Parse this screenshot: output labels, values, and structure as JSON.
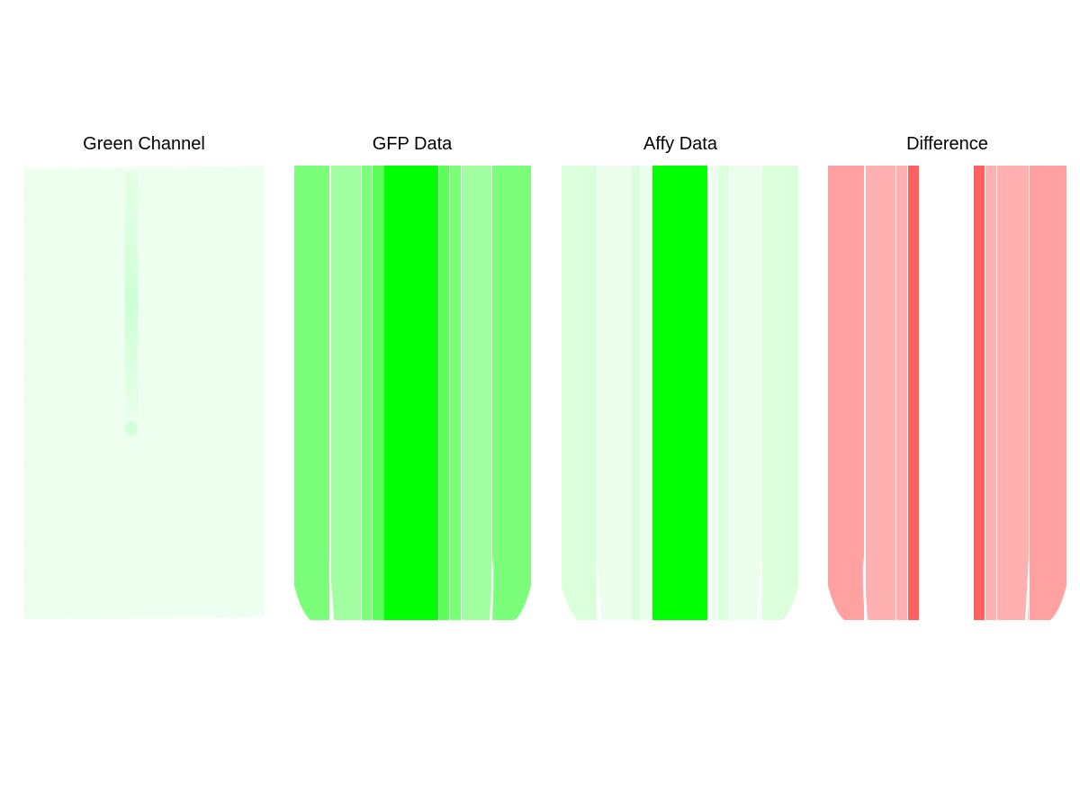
{
  "figure": {
    "panels": [
      {
        "id": "green-channel",
        "title": "Green Channel",
        "kind": "image"
      },
      {
        "id": "gfp-data",
        "title": "GFP Data",
        "kind": "bands",
        "bands": [
          {
            "w": 39,
            "color": "#7bff7b"
          },
          {
            "w": 2,
            "color": "#ffffff"
          },
          {
            "w": 33,
            "color": "#a1ffa1"
          },
          {
            "w": 1,
            "color": "#ffffff"
          },
          {
            "w": 11,
            "color": "#7bff7b"
          },
          {
            "w": 1,
            "color": "#ffffff"
          },
          {
            "w": 13,
            "color": "#5aff5a"
          },
          {
            "w": 60,
            "color": "#00ff00"
          },
          {
            "w": 1,
            "color": "#ffffff"
          },
          {
            "w": 11,
            "color": "#5aff5a"
          },
          {
            "w": 1,
            "color": "#ffffff"
          },
          {
            "w": 12,
            "color": "#7bff7b"
          },
          {
            "w": 1,
            "color": "#ffffff"
          },
          {
            "w": 33,
            "color": "#a1ffa1"
          },
          {
            "w": 1,
            "color": "#ffffff"
          },
          {
            "w": 43,
            "color": "#7bff7b"
          }
        ]
      },
      {
        "id": "affy-data",
        "title": "Affy Data",
        "kind": "bands",
        "bands": [
          {
            "w": 39,
            "color": "#daffda"
          },
          {
            "w": 1,
            "color": "#ffffff"
          },
          {
            "w": 36,
            "color": "#ecffec"
          },
          {
            "w": 1,
            "color": "#ffffff"
          },
          {
            "w": 10,
            "color": "#daffda"
          },
          {
            "w": 1,
            "color": "#ffffff"
          },
          {
            "w": 13,
            "color": "#ecffec"
          },
          {
            "w": 61,
            "color": "#00ff00"
          },
          {
            "w": 1,
            "color": "#ffffff"
          },
          {
            "w": 10,
            "color": "#ecffec"
          },
          {
            "w": 1,
            "color": "#ffffff"
          },
          {
            "w": 12,
            "color": "#daffda"
          },
          {
            "w": 1,
            "color": "#ffffff"
          },
          {
            "w": 35,
            "color": "#ecffec"
          },
          {
            "w": 1,
            "color": "#ffffff"
          },
          {
            "w": 40,
            "color": "#daffda"
          }
        ]
      },
      {
        "id": "difference",
        "title": "Difference",
        "kind": "bands",
        "bands": [
          {
            "w": 40,
            "color": "#ffa1a1"
          },
          {
            "w": 2,
            "color": "#ffffff"
          },
          {
            "w": 33,
            "color": "#ffb0b0"
          },
          {
            "w": 1,
            "color": "#ffffff"
          },
          {
            "w": 12,
            "color": "#ffb0b0"
          },
          {
            "w": 1,
            "color": "#ffffff"
          },
          {
            "w": 12,
            "color": "#ff6161"
          },
          {
            "w": 61,
            "color": "#ffffff"
          },
          {
            "w": 12,
            "color": "#ff6161"
          },
          {
            "w": 1,
            "color": "#ffffff"
          },
          {
            "w": 12,
            "color": "#ffb0b0"
          },
          {
            "w": 1,
            "color": "#ffffff"
          },
          {
            "w": 35,
            "color": "#ffb0b0"
          },
          {
            "w": 1,
            "color": "#ffffff"
          },
          {
            "w": 41,
            "color": "#ffa1a1"
          }
        ]
      }
    ]
  }
}
